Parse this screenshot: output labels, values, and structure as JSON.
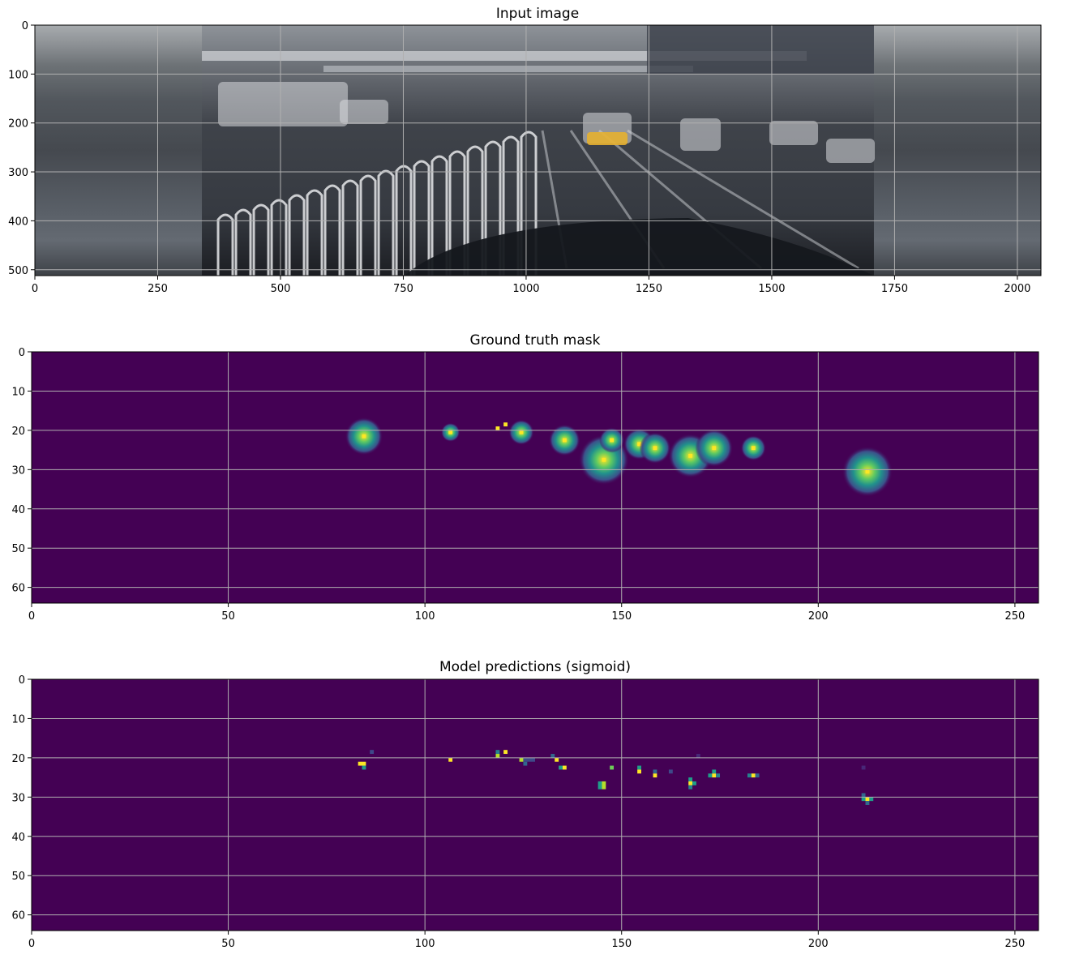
{
  "chart_data": [
    {
      "type": "heatmap",
      "title": "Input image",
      "content": "photograph",
      "xlim": [
        0,
        2048
      ],
      "ylim": [
        512,
        0
      ],
      "xticks": [
        0,
        250,
        500,
        750,
        1000,
        1250,
        1500,
        1750,
        2000
      ],
      "yticks": [
        0,
        100,
        200,
        300,
        400,
        500
      ],
      "image_extent_x": [
        340,
        1708
      ],
      "grid": true
    },
    {
      "type": "heatmap",
      "title": "Ground truth mask",
      "colormap": "viridis",
      "xlim": [
        0,
        256
      ],
      "ylim": [
        64,
        0
      ],
      "xticks": [
        0,
        50,
        100,
        150,
        200,
        250
      ],
      "yticks": [
        0,
        10,
        20,
        30,
        40,
        50,
        60
      ],
      "grid": true,
      "blobs": [
        {
          "x": 84,
          "y": 21,
          "r": 3
        },
        {
          "x": 106,
          "y": 20,
          "r": 1.5
        },
        {
          "x": 118,
          "y": 19,
          "r": 0.5
        },
        {
          "x": 120,
          "y": 18,
          "r": 0.5
        },
        {
          "x": 124,
          "y": 20,
          "r": 2
        },
        {
          "x": 133,
          "y": 20,
          "r": 0.5
        },
        {
          "x": 135,
          "y": 22,
          "r": 2.5
        },
        {
          "x": 145,
          "y": 27,
          "r": 4
        },
        {
          "x": 147,
          "y": 22,
          "r": 2
        },
        {
          "x": 154,
          "y": 23,
          "r": 2.5
        },
        {
          "x": 158,
          "y": 24,
          "r": 2.5
        },
        {
          "x": 167,
          "y": 26,
          "r": 3.5
        },
        {
          "x": 173,
          "y": 24,
          "r": 3
        },
        {
          "x": 183,
          "y": 24,
          "r": 2
        },
        {
          "x": 212,
          "y": 30,
          "r": 4
        }
      ]
    },
    {
      "type": "heatmap",
      "title": "Model predictions (sigmoid)",
      "colormap": "viridis",
      "xlim": [
        0,
        256
      ],
      "ylim": [
        64,
        0
      ],
      "xticks": [
        0,
        50,
        100,
        150,
        200,
        250
      ],
      "yticks": [
        0,
        10,
        20,
        30,
        40,
        50,
        60
      ],
      "grid": true,
      "pixels": [
        {
          "x": 83,
          "y": 21,
          "w": 2,
          "h": 1,
          "v": 0.95
        },
        {
          "x": 84,
          "y": 22,
          "w": 1,
          "h": 1,
          "v": 0.55
        },
        {
          "x": 86,
          "y": 18,
          "w": 1,
          "h": 1,
          "v": 0.2
        },
        {
          "x": 106,
          "y": 20,
          "w": 1,
          "h": 1,
          "v": 0.95
        },
        {
          "x": 118,
          "y": 18,
          "w": 1,
          "h": 1,
          "v": 0.45
        },
        {
          "x": 118,
          "y": 19,
          "w": 1,
          "h": 1,
          "v": 0.9
        },
        {
          "x": 120,
          "y": 18,
          "w": 1,
          "h": 1,
          "v": 1.0
        },
        {
          "x": 124,
          "y": 20,
          "w": 1,
          "h": 1,
          "v": 0.9
        },
        {
          "x": 125,
          "y": 20,
          "w": 3,
          "h": 1,
          "v": 0.25
        },
        {
          "x": 125,
          "y": 21,
          "w": 1,
          "h": 1,
          "v": 0.3
        },
        {
          "x": 132,
          "y": 19,
          "w": 1,
          "h": 1,
          "v": 0.3
        },
        {
          "x": 133,
          "y": 20,
          "w": 1,
          "h": 1,
          "v": 1.0
        },
        {
          "x": 134,
          "y": 22,
          "w": 1,
          "h": 1,
          "v": 0.55
        },
        {
          "x": 135,
          "y": 22,
          "w": 1,
          "h": 1,
          "v": 0.95
        },
        {
          "x": 144,
          "y": 26,
          "w": 1,
          "h": 2,
          "v": 0.6
        },
        {
          "x": 145,
          "y": 26,
          "w": 1,
          "h": 2,
          "v": 0.9
        },
        {
          "x": 147,
          "y": 22,
          "w": 1,
          "h": 1,
          "v": 0.75
        },
        {
          "x": 154,
          "y": 22,
          "w": 1,
          "h": 1,
          "v": 0.55
        },
        {
          "x": 154,
          "y": 23,
          "w": 1,
          "h": 1,
          "v": 0.95
        },
        {
          "x": 158,
          "y": 23,
          "w": 1,
          "h": 1,
          "v": 0.35
        },
        {
          "x": 158,
          "y": 24,
          "w": 1,
          "h": 1,
          "v": 0.95
        },
        {
          "x": 162,
          "y": 23,
          "w": 1,
          "h": 1,
          "v": 0.2
        },
        {
          "x": 167,
          "y": 25,
          "w": 1,
          "h": 1,
          "v": 0.6
        },
        {
          "x": 167,
          "y": 26,
          "w": 1,
          "h": 1,
          "v": 0.95
        },
        {
          "x": 168,
          "y": 26,
          "w": 1,
          "h": 1,
          "v": 0.55
        },
        {
          "x": 167,
          "y": 27,
          "w": 1,
          "h": 1,
          "v": 0.4
        },
        {
          "x": 169,
          "y": 19,
          "w": 1,
          "h": 1,
          "v": 0.15
        },
        {
          "x": 172,
          "y": 24,
          "w": 1,
          "h": 1,
          "v": 0.6
        },
        {
          "x": 173,
          "y": 23,
          "w": 1,
          "h": 1,
          "v": 0.55
        },
        {
          "x": 173,
          "y": 24,
          "w": 1,
          "h": 1,
          "v": 0.95
        },
        {
          "x": 174,
          "y": 24,
          "w": 1,
          "h": 1,
          "v": 0.4
        },
        {
          "x": 182,
          "y": 24,
          "w": 1,
          "h": 1,
          "v": 0.45
        },
        {
          "x": 183,
          "y": 24,
          "w": 1,
          "h": 1,
          "v": 1.0
        },
        {
          "x": 184,
          "y": 24,
          "w": 1,
          "h": 1,
          "v": 0.3
        },
        {
          "x": 211,
          "y": 29,
          "w": 1,
          "h": 1,
          "v": 0.35
        },
        {
          "x": 211,
          "y": 30,
          "w": 1,
          "h": 1,
          "v": 0.6
        },
        {
          "x": 212,
          "y": 30,
          "w": 1,
          "h": 1,
          "v": 0.95
        },
        {
          "x": 213,
          "y": 30,
          "w": 1,
          "h": 1,
          "v": 0.5
        },
        {
          "x": 212,
          "y": 31,
          "w": 1,
          "h": 1,
          "v": 0.3
        },
        {
          "x": 211,
          "y": 22,
          "w": 1,
          "h": 1,
          "v": 0.15
        }
      ]
    }
  ]
}
